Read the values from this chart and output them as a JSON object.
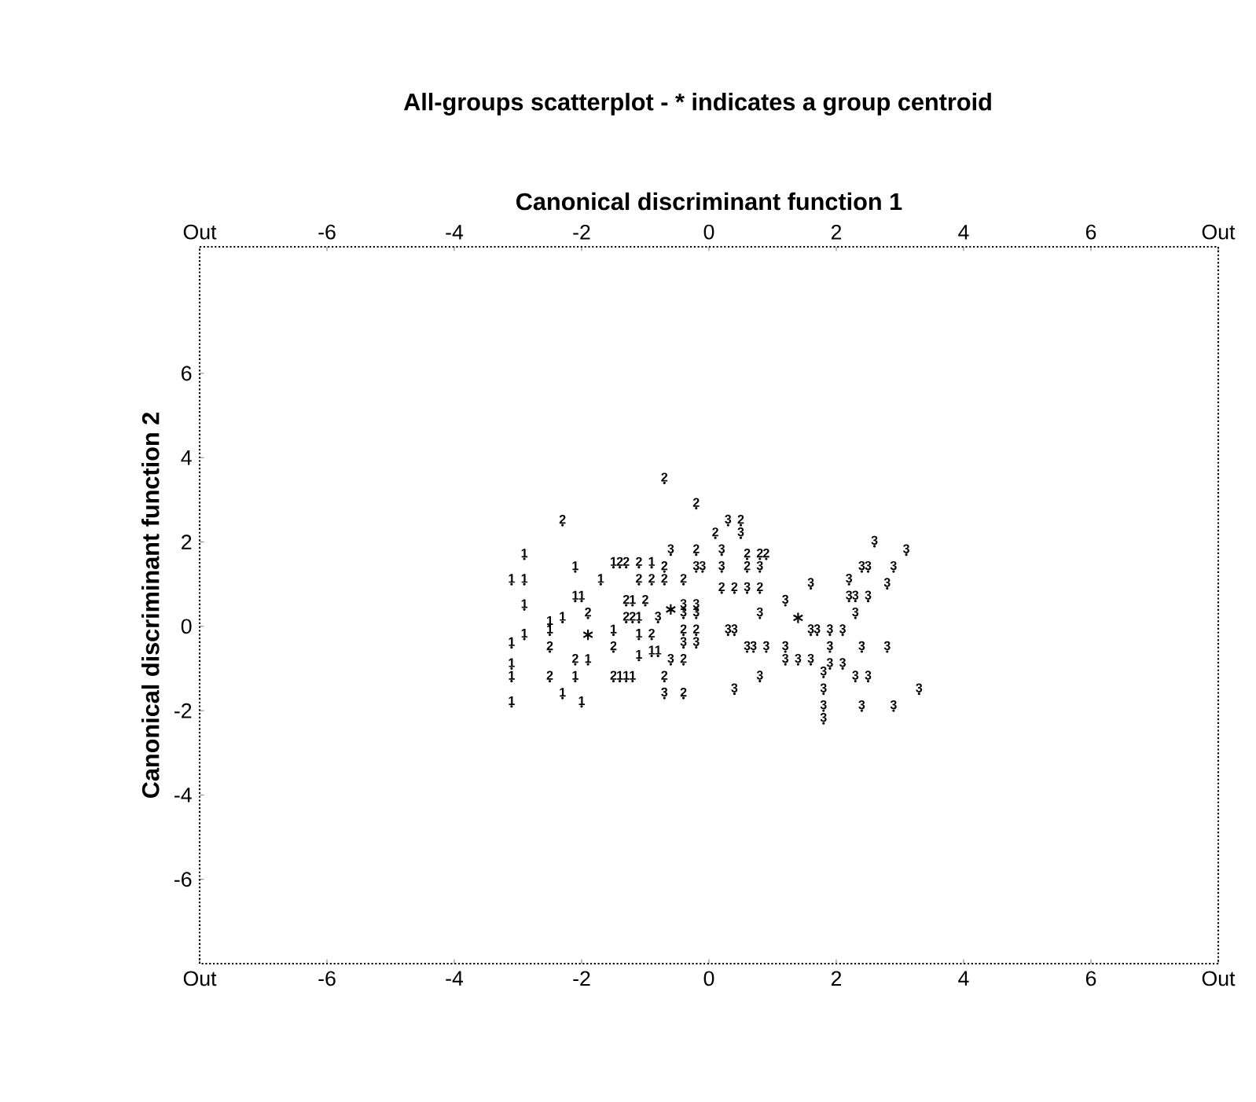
{
  "chart_data": {
    "type": "scatter",
    "title": "All-groups scatterplot - * indicates a group centroid",
    "x2label": "Canonical discriminant function 1",
    "ylabel": "Canonical discriminant function 2",
    "xlim": [
      -8,
      8
    ],
    "ylim": [
      -8,
      9
    ],
    "xticks": [
      {
        "value": -8,
        "label": "Out"
      },
      -6,
      -4,
      -2,
      0,
      2,
      4,
      6,
      {
        "value": 8,
        "label": "Out"
      }
    ],
    "x2lim": [
      -8,
      8
    ],
    "x2ticks": [
      {
        "value": -8,
        "label": "Out"
      },
      -6,
      -4,
      -2,
      0,
      2,
      4,
      6,
      {
        "value": 8,
        "label": "Out"
      }
    ],
    "yticks": [
      -6,
      -4,
      -2,
      0,
      2,
      4,
      6
    ],
    "series": [
      {
        "name": "1",
        "color": "#000000",
        "x": [
          -2.9,
          -2.1,
          -1.5,
          -0.9,
          -3.1,
          -2.9,
          -1.7,
          -2.9,
          -2.1,
          -2.0,
          -1.2,
          -2.3,
          -1.1,
          -2.5,
          -2.9,
          -2.5,
          -1.5,
          -1.1,
          -3.1,
          -0.9,
          -0.8,
          -3.1,
          -1.9,
          -1.1,
          -3.1,
          -2.1,
          -1.4,
          -1.3,
          -1.2,
          -2.3,
          -3.1,
          -2.0
        ],
        "values": [
          1.6,
          1.3,
          1.4,
          1.4,
          1.0,
          1.0,
          1.0,
          0.4,
          0.6,
          0.6,
          0.5,
          0.1,
          0.1,
          0.0,
          -0.3,
          -0.2,
          -0.2,
          -0.3,
          -0.5,
          -0.7,
          -0.7,
          -1.0,
          -0.9,
          -0.8,
          -1.3,
          -1.3,
          -1.3,
          -1.3,
          -1.3,
          -1.7,
          -1.9,
          -1.9
        ]
      },
      {
        "name": "2",
        "color": "#000000",
        "x": [
          -0.7,
          -2.3,
          -0.2,
          0.5,
          0.1,
          -0.2,
          0.6,
          0.8,
          0.9,
          -1.4,
          -1.3,
          -1.1,
          -0.7,
          0.6,
          -1.1,
          -0.9,
          -0.7,
          -0.4,
          0.2,
          0.4,
          0.8,
          -1.3,
          -1.0,
          -1.9,
          -1.3,
          -1.2,
          -0.9,
          -0.4,
          -0.2,
          -2.5,
          -1.5,
          -0.4,
          -2.1,
          -2.5,
          -1.5,
          -0.7,
          -0.4
        ],
        "values": [
          3.4,
          2.4,
          2.8,
          2.4,
          2.1,
          1.7,
          1.6,
          1.6,
          1.6,
          1.4,
          1.4,
          1.4,
          1.3,
          1.3,
          1.0,
          1.0,
          1.0,
          1.0,
          0.8,
          0.8,
          0.8,
          0.5,
          0.5,
          0.2,
          0.1,
          0.1,
          -0.3,
          -0.2,
          -0.2,
          -0.6,
          -0.6,
          -0.9,
          -0.9,
          -1.3,
          -1.3,
          -1.3,
          -1.7
        ]
      },
      {
        "name": "3",
        "color": "#000000",
        "x": [
          0.3,
          0.5,
          -0.6,
          0.2,
          -0.2,
          -0.1,
          0.2,
          0.8,
          0.6,
          -0.4,
          -0.2,
          0.8,
          -0.8,
          -0.4,
          -0.2,
          0.3,
          0.4,
          -0.4,
          -0.2,
          0.6,
          0.7,
          0.9,
          -0.6,
          0.8,
          -0.7,
          0.4,
          2.6,
          3.1,
          2.4,
          2.5,
          2.9,
          1.6,
          2.2,
          2.8,
          1.2,
          2.2,
          2.3,
          2.5,
          2.3,
          1.6,
          1.7,
          1.9,
          2.1,
          1.2,
          1.9,
          2.4,
          2.8,
          1.2,
          1.4,
          1.6,
          1.9,
          2.1,
          1.8,
          2.3,
          2.5,
          1.8,
          3.3,
          1.8,
          2.4,
          2.9,
          1.8
        ],
        "values": [
          2.4,
          2.1,
          1.7,
          1.7,
          1.3,
          1.3,
          1.3,
          1.3,
          0.8,
          0.4,
          0.4,
          0.2,
          0.1,
          0.2,
          0.2,
          -0.2,
          -0.2,
          -0.5,
          -0.5,
          -0.6,
          -0.6,
          -0.6,
          -0.9,
          -1.3,
          -1.7,
          -1.6,
          1.9,
          1.7,
          1.3,
          1.3,
          1.3,
          0.9,
          1.0,
          0.9,
          0.5,
          0.6,
          0.6,
          0.6,
          0.2,
          -0.2,
          -0.2,
          -0.2,
          -0.2,
          -0.6,
          -0.6,
          -0.6,
          -0.6,
          -0.9,
          -0.9,
          -0.9,
          -1.0,
          -1.0,
          -1.2,
          -1.3,
          -1.3,
          -1.6,
          -1.6,
          -2.0,
          -2.0,
          -2.0,
          -2.3
        ]
      },
      {
        "color": "#000000",
        "marker": "cross",
        "x": [
          -1.9,
          -0.6,
          1.4
        ],
        "values": [
          -0.2,
          0.4,
          0.2
        ]
      }
    ]
  }
}
